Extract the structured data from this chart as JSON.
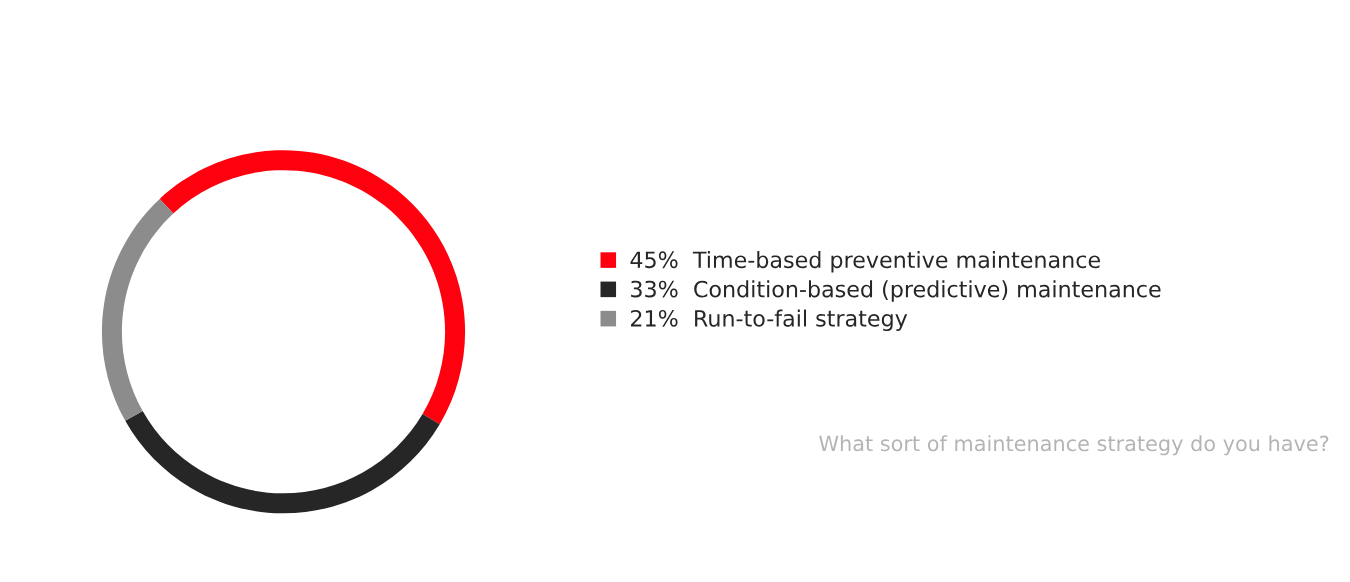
{
  "chart_data": {
    "type": "donut",
    "categories": [
      "Time-based preventive maintenance",
      "Condition-based (predictive) maintenance",
      "Run-to-fail strategy"
    ],
    "values": [
      45,
      33,
      21
    ],
    "value_labels": [
      "45%",
      "33%",
      "21%"
    ],
    "colors": [
      "#ff000f",
      "#262626",
      "#8c8c8c"
    ],
    "legend": "right",
    "annotations": [
      "What sort of maintenance strategy do you have?"
    ]
  }
}
